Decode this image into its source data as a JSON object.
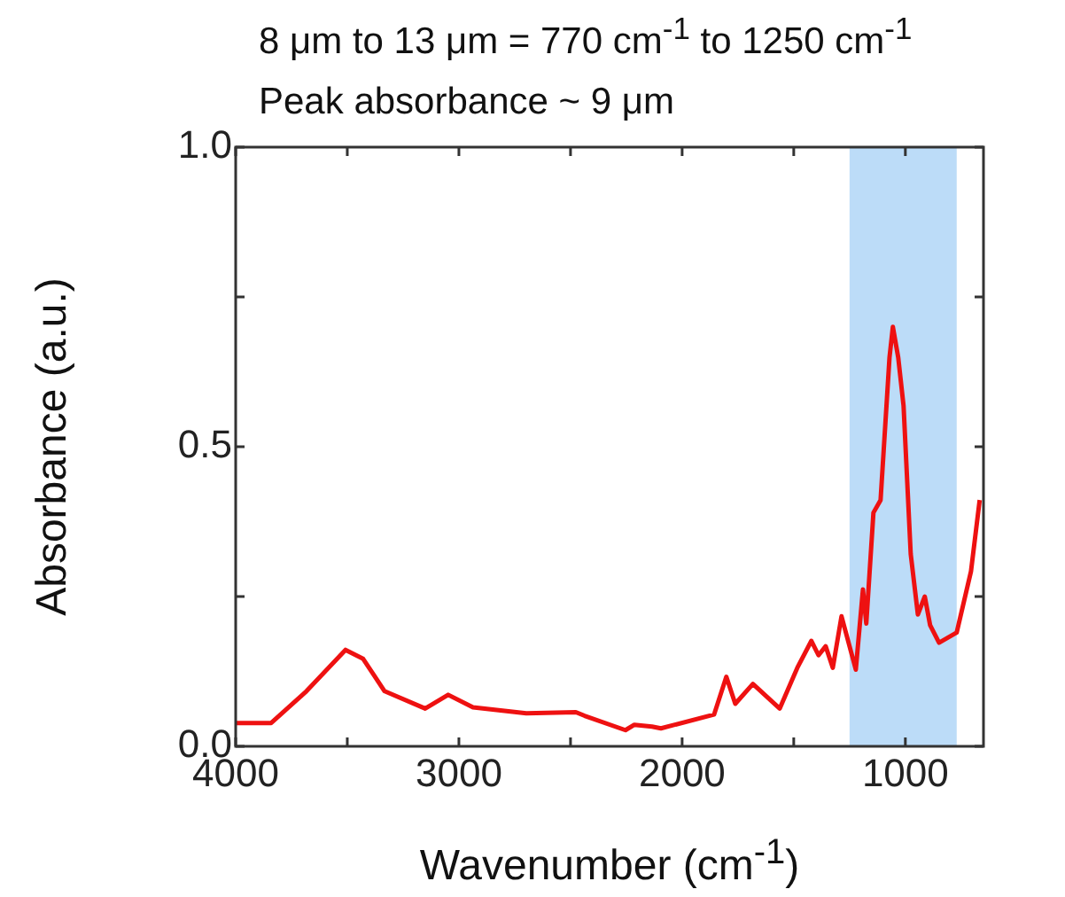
{
  "chart_data": {
    "type": "line",
    "xlabel": "Wavenumber (cm$^{-1}$)",
    "ylabel": "Absorbance (a.u.)",
    "annotations": [
      "8 μm to 13 μm = 770 cm$^{-1}$ to 1250 cm$^{-1}$",
      "Peak absorbance ~ 9 μm"
    ],
    "series": [
      {
        "color": "#ee1111",
        "x": [
          4000,
          3841,
          3683,
          3508,
          3429,
          3333,
          3151,
          3048,
          2937,
          2698,
          2476,
          2437,
          2254,
          2214,
          2135,
          2095,
          1857,
          1802,
          1762,
          1683,
          1563,
          1484,
          1421,
          1389,
          1357,
          1325,
          1286,
          1222,
          1190,
          1175,
          1143,
          1111,
          1071,
          1056,
          1032,
          1008,
          976,
          944,
          913,
          889,
          849,
          770,
          706,
          667
        ],
        "values": [
          0.039,
          0.039,
          0.092,
          0.161,
          0.146,
          0.092,
          0.063,
          0.086,
          0.065,
          0.055,
          0.057,
          0.051,
          0.027,
          0.036,
          0.033,
          0.03,
          0.053,
          0.116,
          0.071,
          0.104,
          0.063,
          0.131,
          0.176,
          0.152,
          0.167,
          0.131,
          0.217,
          0.128,
          0.262,
          0.205,
          0.39,
          0.411,
          0.649,
          0.7,
          0.649,
          0.568,
          0.321,
          0.22,
          0.25,
          0.202,
          0.173,
          0.19,
          0.292,
          0.411
        ]
      }
    ],
    "xlim": [
      4000,
      650
    ],
    "xticks": [
      4000,
      {
        "value": 3500,
        "label": null
      },
      3000,
      {
        "value": 2500,
        "label": null
      },
      2000,
      {
        "value": 1500,
        "label": null
      },
      1000
    ],
    "ylim": [
      0,
      1
    ],
    "yticks": [
      {
        "value": 0,
        "label": "0.0"
      },
      {
        "value": 0.25,
        "label": null
      },
      0.5,
      {
        "value": 0.75,
        "label": null
      },
      {
        "value": 1,
        "label": "1.0"
      }
    ],
    "bands": [
      {
        "axis": "x",
        "from": 1250,
        "to": 770,
        "color": "#bcdcf8"
      }
    ],
    "grid": false,
    "legend": false,
    "marker": "none",
    "line_style": "solid"
  }
}
